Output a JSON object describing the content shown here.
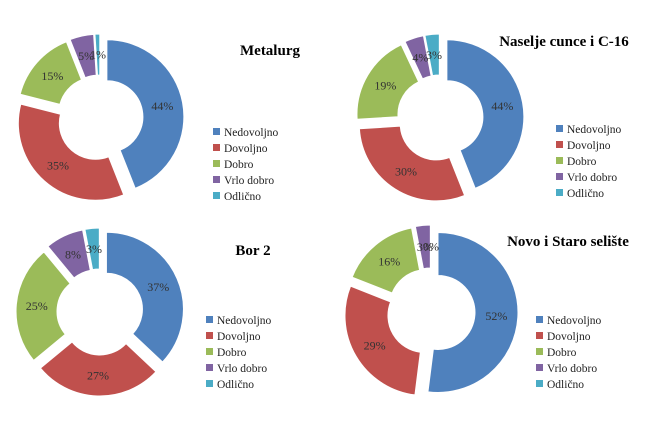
{
  "colors": {
    "Nedovoljno": "#4F81BD",
    "Dovoljno": "#C0504D",
    "Dobro": "#9BBB59",
    "Vrlo dobro": "#8064A2",
    "Odlično": "#4BACC6"
  },
  "chart_data": [
    {
      "type": "pie",
      "title": "Metalurg",
      "categories": [
        "Nedovoljno",
        "Dovoljno",
        "Dobro",
        "Vrlo dobro",
        "Odlično"
      ],
      "values": [
        44,
        35,
        15,
        5,
        1
      ],
      "labels": [
        "44%",
        "35%",
        "15%",
        "5%",
        "1%"
      ]
    },
    {
      "type": "pie",
      "title": "Naselje cunce i C-16",
      "categories": [
        "Nedovoljno",
        "Dovoljno",
        "Dobro",
        "Vrlo dobro",
        "Odlično"
      ],
      "values": [
        44,
        30,
        19,
        4,
        3
      ],
      "labels": [
        "44%",
        "30%",
        "19%",
        "4%",
        "3%"
      ]
    },
    {
      "type": "pie",
      "title": "Bor 2",
      "categories": [
        "Nedovoljno",
        "Dovoljno",
        "Dobro",
        "Vrlo dobro",
        "Odlično"
      ],
      "values": [
        37,
        27,
        25,
        8,
        3
      ],
      "labels": [
        "37%",
        "27%",
        "25%",
        "8%",
        "3%"
      ]
    },
    {
      "type": "pie",
      "title": "Novo i Staro selište",
      "categories": [
        "Nedovoljno",
        "Dovoljno",
        "Dobro",
        "Vrlo dobro",
        "Odlično"
      ],
      "values": [
        52,
        29,
        16,
        3,
        0
      ],
      "labels": [
        "52%",
        "29%",
        "16%",
        "3%",
        "0%"
      ]
    }
  ]
}
